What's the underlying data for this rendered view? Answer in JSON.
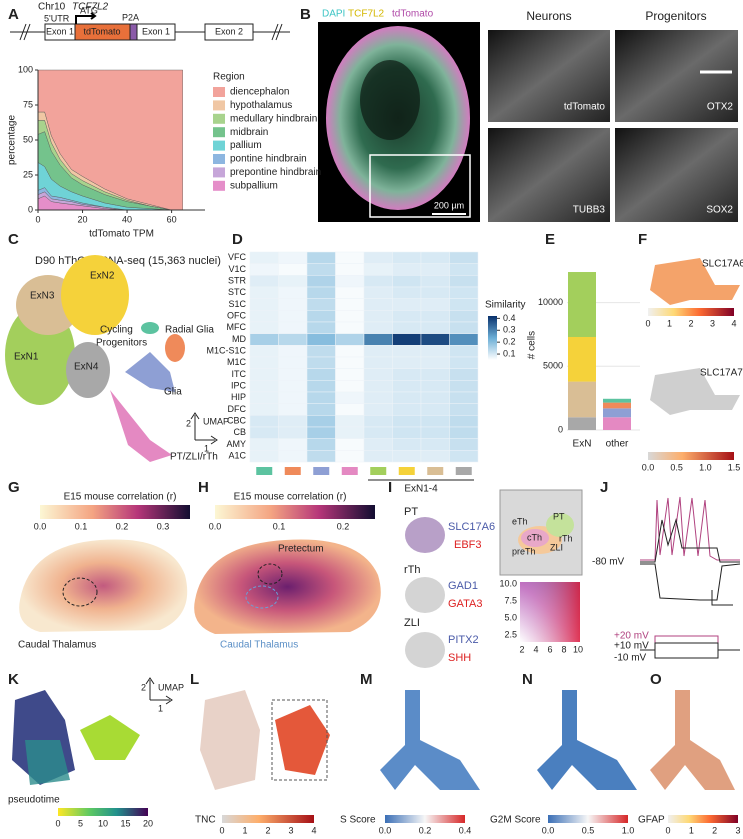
{
  "panel_labels": [
    "A",
    "B",
    "C",
    "D",
    "E",
    "F",
    "G",
    "H",
    "I",
    "J",
    "K",
    "L",
    "M",
    "N",
    "O"
  ],
  "chart_data": [
    {
      "type": "area",
      "xlabel": "tdTomato TPM",
      "ylabel": "percentage",
      "legend_title": "Region",
      "x": [
        0,
        3,
        6,
        10,
        15,
        20,
        30,
        40,
        50,
        60,
        65
      ],
      "xlim": [
        0,
        75
      ],
      "xticks": [
        0,
        20,
        40,
        60
      ],
      "ylim": [
        0,
        100
      ],
      "yticks": [
        0,
        25,
        50,
        75,
        100
      ],
      "series": [
        {
          "name": "subpallium",
          "color": "#e58ec9",
          "values": [
            8,
            10,
            6,
            5,
            4,
            3,
            1,
            0,
            0,
            0,
            0
          ]
        },
        {
          "name": "prepontine hindbrain",
          "color": "#c6a6d9",
          "values": [
            3,
            3,
            2,
            2,
            2,
            1,
            1,
            0,
            0,
            0,
            0
          ]
        },
        {
          "name": "pontine hindbrain",
          "color": "#8db6e0",
          "values": [
            3,
            3,
            2,
            2,
            1,
            1,
            0,
            0,
            0,
            0,
            0
          ]
        },
        {
          "name": "pallium",
          "color": "#6fd3d6",
          "values": [
            20,
            15,
            12,
            8,
            6,
            5,
            3,
            2,
            1,
            0,
            0
          ]
        },
        {
          "name": "midbrain",
          "color": "#74c38c",
          "values": [
            20,
            25,
            20,
            15,
            10,
            8,
            6,
            4,
            2,
            0,
            0
          ]
        },
        {
          "name": "medullary hindbrain",
          "color": "#a8d38d",
          "values": [
            10,
            8,
            6,
            4,
            3,
            3,
            2,
            1,
            0,
            0,
            0
          ]
        },
        {
          "name": "hypothalamus",
          "color": "#f0c7a4",
          "values": [
            6,
            6,
            5,
            4,
            3,
            3,
            2,
            1,
            1,
            0,
            0
          ]
        },
        {
          "name": "diencephalon",
          "color": "#f2a39b",
          "values": [
            30,
            30,
            47,
            60,
            71,
            76,
            85,
            92,
            96,
            100,
            100
          ]
        }
      ]
    },
    {
      "type": "heatmap",
      "colorbar_label": "Similarity",
      "group_label": "ExN1-4",
      "categories": [
        "VFC",
        "V1C",
        "STR",
        "STC",
        "S1C",
        "OFC",
        "MFC",
        "MD",
        "M1C-S1C",
        "M1C",
        "ITC",
        "IPC",
        "HIP",
        "DFC",
        "CBC",
        "CB",
        "AMY",
        "A1C"
      ],
      "column_colors": [
        "#5cc3a0",
        "#ef8a5a",
        "#8e9fd4",
        "#e489c2",
        "#a3cf5c",
        "#f5d23a",
        "#d9be95",
        "#a8a8a8"
      ],
      "clim": [
        0.05,
        0.42
      ],
      "cticks": [
        0.1,
        0.2,
        0.3,
        0.4
      ],
      "values": [
        [
          0.08,
          0.07,
          0.14,
          0.06,
          0.09,
          0.1,
          0.1,
          0.12
        ],
        [
          0.07,
          0.06,
          0.13,
          0.06,
          0.08,
          0.09,
          0.09,
          0.11
        ],
        [
          0.09,
          0.08,
          0.15,
          0.07,
          0.1,
          0.11,
          0.1,
          0.12
        ],
        [
          0.08,
          0.07,
          0.14,
          0.06,
          0.09,
          0.1,
          0.1,
          0.11
        ],
        [
          0.08,
          0.07,
          0.13,
          0.06,
          0.09,
          0.09,
          0.09,
          0.11
        ],
        [
          0.08,
          0.07,
          0.14,
          0.06,
          0.09,
          0.1,
          0.1,
          0.12
        ],
        [
          0.08,
          0.07,
          0.14,
          0.06,
          0.09,
          0.1,
          0.1,
          0.12
        ],
        [
          0.16,
          0.14,
          0.2,
          0.15,
          0.3,
          0.4,
          0.38,
          0.28
        ],
        [
          0.08,
          0.07,
          0.13,
          0.06,
          0.09,
          0.09,
          0.09,
          0.11
        ],
        [
          0.08,
          0.07,
          0.13,
          0.06,
          0.09,
          0.09,
          0.09,
          0.11
        ],
        [
          0.08,
          0.07,
          0.14,
          0.06,
          0.09,
          0.1,
          0.1,
          0.12
        ],
        [
          0.08,
          0.07,
          0.14,
          0.06,
          0.09,
          0.1,
          0.1,
          0.12
        ],
        [
          0.08,
          0.07,
          0.14,
          0.07,
          0.09,
          0.1,
          0.1,
          0.12
        ],
        [
          0.08,
          0.07,
          0.14,
          0.06,
          0.09,
          0.1,
          0.1,
          0.12
        ],
        [
          0.1,
          0.09,
          0.16,
          0.08,
          0.1,
          0.11,
          0.11,
          0.13
        ],
        [
          0.1,
          0.09,
          0.16,
          0.08,
          0.1,
          0.11,
          0.11,
          0.13
        ],
        [
          0.08,
          0.07,
          0.14,
          0.06,
          0.09,
          0.1,
          0.1,
          0.12
        ],
        [
          0.08,
          0.07,
          0.13,
          0.06,
          0.09,
          0.09,
          0.09,
          0.11
        ]
      ]
    },
    {
      "type": "bar",
      "ylabel": "# cells",
      "categories": [
        "ExN",
        "other"
      ],
      "ylim": [
        0,
        13500
      ],
      "yticks": [
        0,
        5000,
        10000
      ],
      "series": [
        {
          "color": "#a8a8a8",
          "values": [
            1000,
            0
          ]
        },
        {
          "color": "#d9be95",
          "values": [
            2800,
            0
          ]
        },
        {
          "color": "#f5d23a",
          "values": [
            3500,
            0
          ]
        },
        {
          "color": "#a3cf5c",
          "values": [
            5100,
            0
          ]
        },
        {
          "color": "#e489c2",
          "values": [
            0,
            1000
          ]
        },
        {
          "color": "#8e9fd4",
          "values": [
            0,
            700
          ]
        },
        {
          "color": "#ef8a5a",
          "values": [
            0,
            450
          ]
        },
        {
          "color": "#5cc3a0",
          "values": [
            0,
            300
          ]
        }
      ]
    }
  ],
  "panel_a": {
    "chromosome": "Chr10",
    "gene": "TCF7L2",
    "utr": "5'UTR",
    "atg": "ATG",
    "p2a": "P2A",
    "exon1": "Exon 1",
    "reporter": "tdTomato",
    "exon1b": "Exon 1",
    "exon2": "Exon 2"
  },
  "panel_b": {
    "dapi": "DAPI",
    "tcf": "TCF7L2",
    "tdt": "tdTomato",
    "scale": "200 µm",
    "neurons": "Neurons",
    "progenitors": "Progenitors",
    "stains": [
      "tdTomato",
      "OTX2",
      "TUBB3",
      "SOX2"
    ]
  },
  "panel_c": {
    "title": "D90 hThO snRNA-seq (15,363 nuclei)",
    "clusters": [
      "ExN2",
      "ExN3",
      "ExN1",
      "ExN4",
      "Cycling",
      "Progenitors",
      "Radial Glia",
      "Glia",
      "PT/ZLI/rTh"
    ],
    "umap": "UMAP",
    "dim1": "1",
    "dim2": "2"
  },
  "panel_f": {
    "genes": [
      "SLC17A6",
      "SLC17A7"
    ]
  },
  "panel_g": {
    "title": "E15 mouse correlation (r)",
    "region": "Caudal Thalamus"
  },
  "panel_h": {
    "title": "E15 mouse correlation (r)",
    "pretectum": "Pretectum",
    "region": "Caudal Thalamus"
  },
  "panel_i": {
    "rows": [
      {
        "region": "PT",
        "gene1": "SLC17A6",
        "gene2": "EBF3"
      },
      {
        "region": "rTh",
        "gene1": "GAD1",
        "gene2": "GATA3"
      },
      {
        "region": "ZLI",
        "gene1": "PITX2",
        "gene2": "SHH"
      }
    ],
    "diagram": [
      "eTh",
      "PT",
      "cTh",
      "rTh",
      "ZLI",
      "preTh"
    ],
    "yticks": [
      "10.0",
      "7.5",
      "5.0",
      "2.5"
    ],
    "xticks": [
      "2",
      "4",
      "6",
      "8",
      "10"
    ]
  },
  "panel_j": {
    "rest": "-80 mV",
    "steps": [
      "+20 mV",
      "+10 mV",
      "-10 mV"
    ]
  },
  "panel_k": {
    "umap": "UMAP",
    "dim1": "1",
    "dim2": "2"
  },
  "colorbars": [
    {
      "ticks": [
        "0",
        "1",
        "2",
        "3",
        "4"
      ]
    },
    {
      "ticks": [
        "0.0",
        "0.5",
        "1.0",
        "1.5"
      ]
    },
    {
      "ticks": [
        "0.0",
        "0.1",
        "0.2",
        "0.3"
      ]
    },
    {
      "ticks": [
        "0.0",
        "0.1",
        "0.2"
      ]
    },
    {
      "label": "pseudotime",
      "ticks": [
        "0",
        "5",
        "10",
        "15",
        "20"
      ]
    },
    {
      "label": "TNC",
      "ticks": [
        "0",
        "1",
        "2",
        "3",
        "4"
      ]
    },
    {
      "label": "S Score",
      "ticks": [
        "0.0",
        "0.2",
        "0.4"
      ]
    },
    {
      "label": "G2M Score",
      "ticks": [
        "0.0",
        "0.5",
        "1.0"
      ]
    },
    {
      "label": "GFAP",
      "ticks": [
        "0",
        "1",
        "2",
        "3"
      ]
    }
  ]
}
